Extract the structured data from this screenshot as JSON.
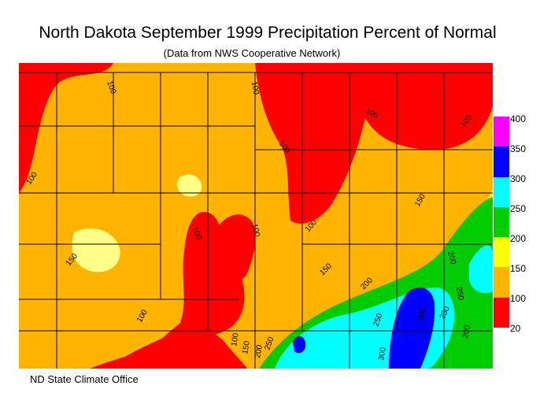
{
  "title": "North Dakota September 1999 Precipitation Percent of Normal",
  "subtitle": "(Data from NWS Cooperative Network)",
  "footer": "ND State Climate Office",
  "legend": {
    "labels": [
      "400",
      "350",
      "300",
      "250",
      "200",
      "150",
      "100",
      "20"
    ],
    "bins": [
      {
        "color": "#ff00ff"
      },
      {
        "color": "#0000ff"
      },
      {
        "color": "#00ffff"
      },
      {
        "color": "#00cc00"
      },
      {
        "color": "#ffff00"
      },
      {
        "color": "#ffb400"
      },
      {
        "color": "#ff0000"
      }
    ]
  },
  "contour_labels": [
    "100",
    "100",
    "100",
    "100",
    "100",
    "100",
    "100",
    "100",
    "100",
    "100",
    "100",
    "150",
    "150",
    "150",
    "150",
    "200",
    "200",
    "200",
    "200",
    "250",
    "250",
    "250",
    "250",
    "300",
    "300",
    "200",
    "150"
  ]
}
